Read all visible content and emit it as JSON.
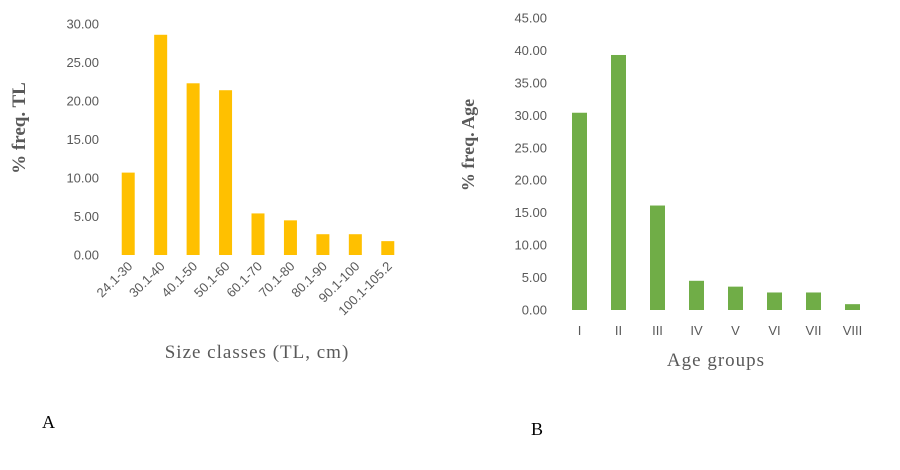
{
  "chart_data": [
    {
      "type": "bar",
      "panel_label": "A",
      "categories": [
        "24.1-30",
        "30.1-40",
        "40.1-50",
        "50.1-60",
        "60.1-70",
        "70.1-80",
        "80.1-90",
        "90.1-100",
        "100.1-105.2"
      ],
      "values": [
        10.7,
        28.6,
        22.3,
        21.4,
        5.4,
        4.5,
        2.7,
        2.7,
        1.8
      ],
      "title": "",
      "xlabel": "Size classes (TL, cm)",
      "ylabel": "% freq. TL",
      "ylim": [
        0,
        30
      ],
      "yticks": [
        "0.00",
        "5.00",
        "10.00",
        "15.00",
        "20.00",
        "25.00",
        "30.00"
      ],
      "color": "#FFC000",
      "grid": false,
      "legend": "none"
    },
    {
      "type": "bar",
      "panel_label": "B",
      "categories": [
        "I",
        "II",
        "III",
        "IV",
        "V",
        "VI",
        "VII",
        "VIII"
      ],
      "values": [
        30.4,
        39.3,
        16.1,
        4.5,
        3.6,
        2.7,
        2.7,
        0.9
      ],
      "title": "",
      "xlabel": "Age groups",
      "ylabel": "% freq. Age",
      "ylim": [
        0,
        45
      ],
      "yticks": [
        "0.00",
        "5.00",
        "10.00",
        "15.00",
        "20.00",
        "25.00",
        "30.00",
        "35.00",
        "40.00",
        "45.00"
      ],
      "color": "#70AD47",
      "grid": false,
      "legend": "none"
    }
  ]
}
